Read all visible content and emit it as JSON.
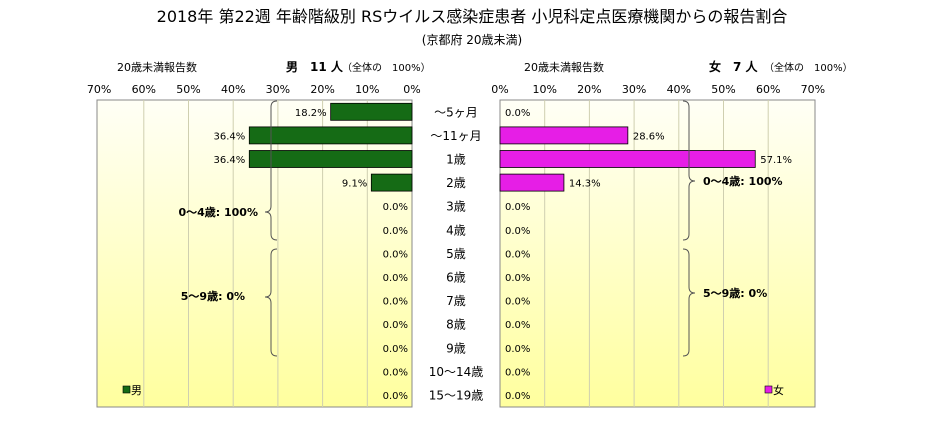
{
  "title": "2018年 第22週 年齢階級別 RSウイルス感染症患者 小児科定点医療機関からの報告割合",
  "subtitle": "(京都府 20歳未満)",
  "colors": {
    "male": "#156b15",
    "female": "#e61ee6",
    "panel_top": "#fffff6",
    "panel_bottom": "#ffff9e",
    "grid": "#cfcfb0"
  },
  "icons": {
    "male_legend": "green-square-icon",
    "female_legend": "magenta-square-icon",
    "bracket": "curly-brace-icon"
  },
  "male": {
    "header_count_label": "20歳未満報告数",
    "header_total": "男　11 人",
    "header_pct_label": "（全体の　100%）",
    "legend": "男",
    "brace_0_4": "0～4歳: 100%",
    "brace_5_9": "5～9歳: 0%"
  },
  "female": {
    "header_count_label": "20歳未満報告数",
    "header_total": "女　7 人",
    "header_pct_label": "（全体の　100%）",
    "legend": "女",
    "brace_0_4": "0～4歳: 100%",
    "brace_5_9": "5～9歳: 0%"
  },
  "chart_data": {
    "type": "bar",
    "orientation": "horizontal-butterfly",
    "categories": [
      "～5ヶ月",
      "～11ヶ月",
      "1歳",
      "2歳",
      "3歳",
      "4歳",
      "5歳",
      "6歳",
      "7歳",
      "8歳",
      "9歳",
      "10～14歳",
      "15～19歳"
    ],
    "xlim": [
      0,
      70
    ],
    "x_ticks": [
      "0%",
      "10%",
      "20%",
      "30%",
      "40%",
      "50%",
      "60%",
      "70%"
    ],
    "series": [
      {
        "name": "男",
        "values": [
          18.2,
          36.4,
          36.4,
          9.1,
          0.0,
          0.0,
          0.0,
          0.0,
          0.0,
          0.0,
          0.0,
          0.0,
          0.0
        ],
        "labels": [
          "18.2%",
          "36.4%",
          "36.4%",
          "9.1%",
          "0.0%",
          "0.0%",
          "0.0%",
          "0.0%",
          "0.0%",
          "0.0%",
          "0.0%",
          "0.0%",
          "0.0%"
        ]
      },
      {
        "name": "女",
        "values": [
          0.0,
          28.6,
          57.1,
          14.3,
          0.0,
          0.0,
          0.0,
          0.0,
          0.0,
          0.0,
          0.0,
          0.0,
          0.0
        ],
        "labels": [
          "0.0%",
          "28.6%",
          "57.1%",
          "14.3%",
          "0.0%",
          "0.0%",
          "0.0%",
          "0.0%",
          "0.0%",
          "0.0%",
          "0.0%",
          "0.0%",
          "0.0%"
        ]
      }
    ],
    "grid": true
  }
}
